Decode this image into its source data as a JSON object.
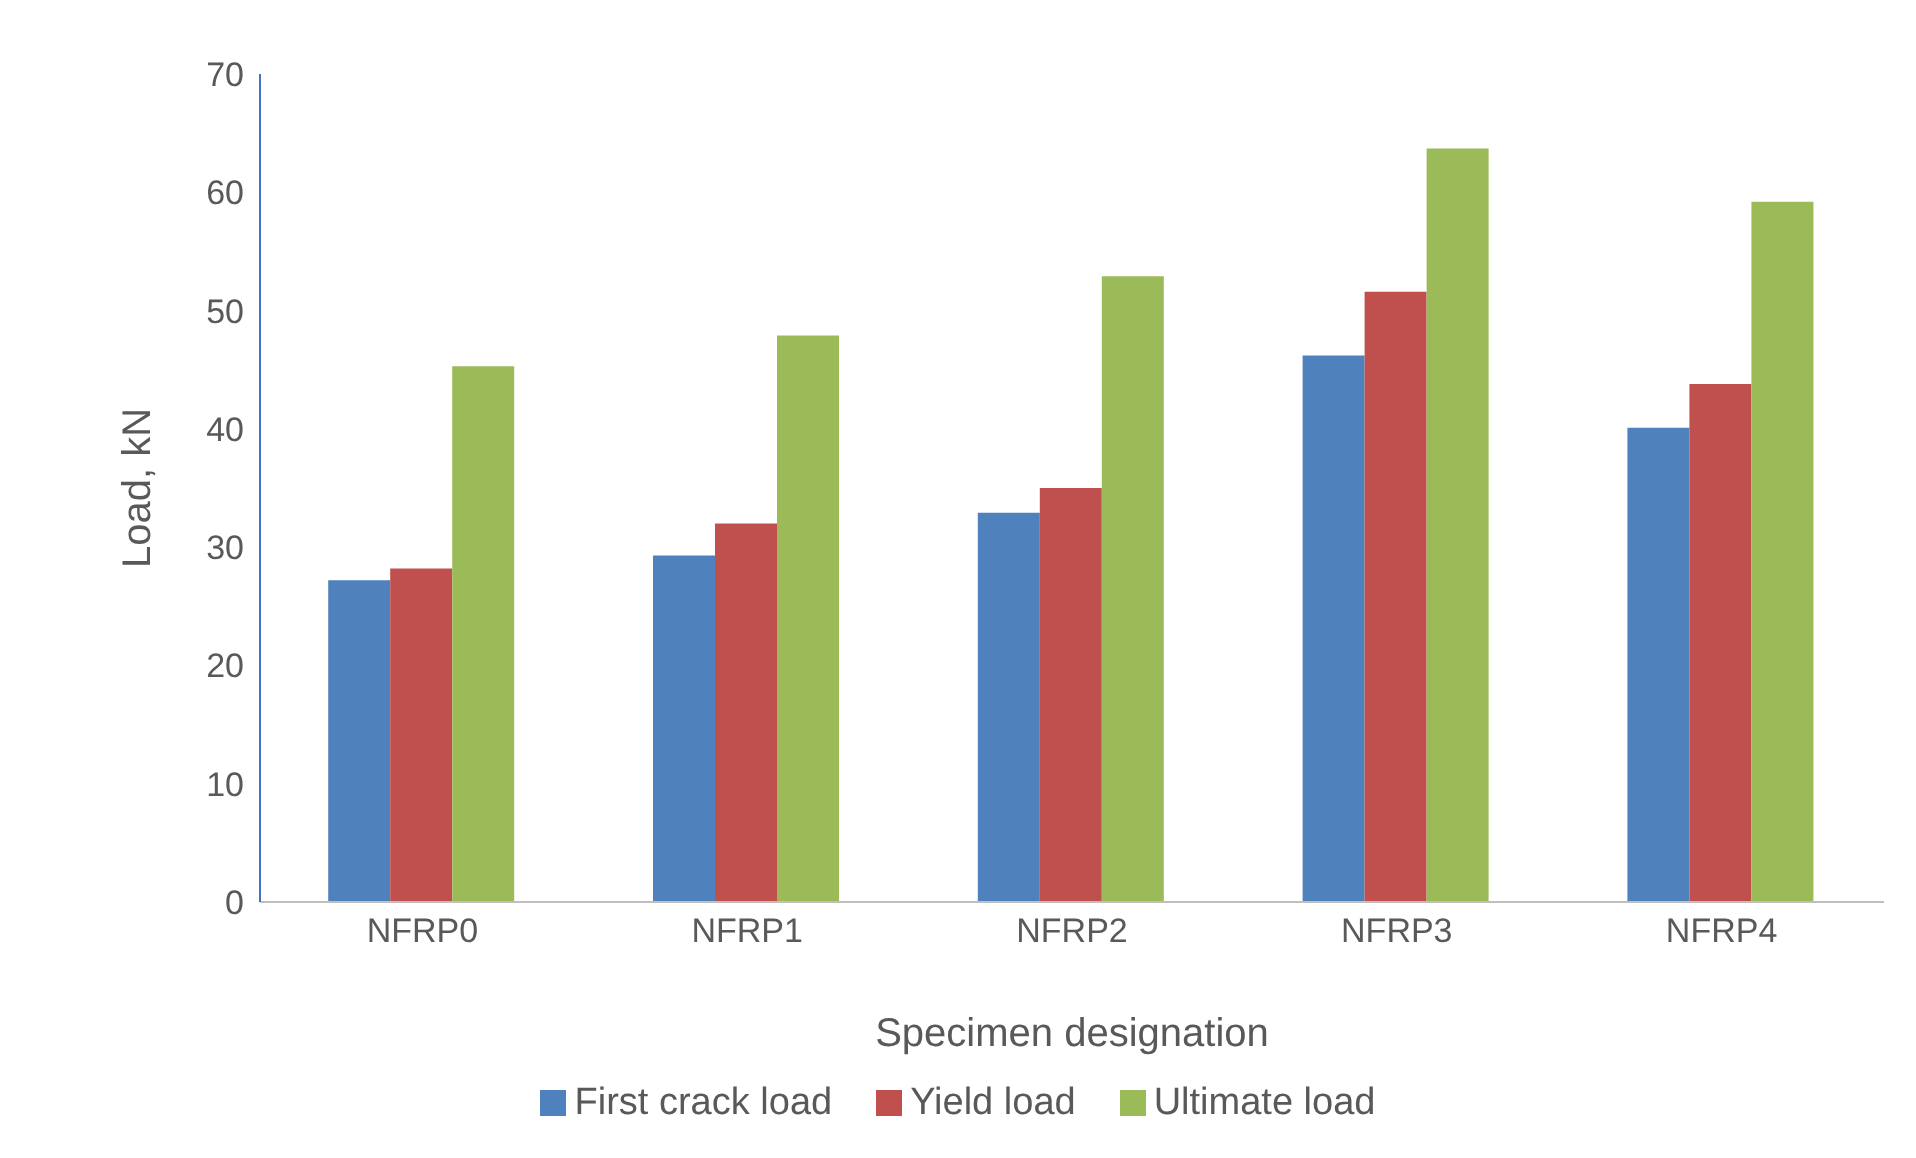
{
  "chart_data": {
    "type": "bar",
    "xlabel": "Specimen designation",
    "ylabel": "Load, kN",
    "categories": [
      "NFRP0",
      "NFRP1",
      "NFRP2",
      "NFRP3",
      "NFRP4"
    ],
    "series": [
      {
        "name": "First crack load",
        "color": "#4f81bd",
        "values": [
          27.2,
          29.3,
          32.9,
          46.2,
          40.1
        ]
      },
      {
        "name": "Yield load",
        "color": "#c0504d",
        "values": [
          28.2,
          32.0,
          35.0,
          51.6,
          43.8
        ]
      },
      {
        "name": "Ultimate load",
        "color": "#9bbb59",
        "values": [
          45.3,
          47.9,
          52.9,
          63.7,
          59.2
        ]
      }
    ],
    "ylim": [
      0,
      70
    ],
    "yticks": [
      0,
      10,
      20,
      30,
      40,
      50,
      60,
      70
    ],
    "grid": false,
    "legend": "bottom"
  }
}
